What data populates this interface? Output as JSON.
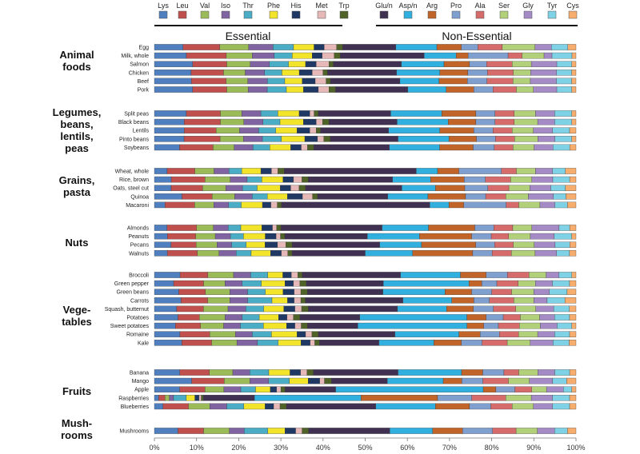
{
  "chart_data": {
    "type": "bar",
    "orientation": "horizontal-stacked-100",
    "sections": [
      {
        "label": "Essential",
        "amino_acids": [
          "Lys",
          "Leu",
          "Val",
          "Iso",
          "Thr",
          "Phe",
          "His",
          "Met",
          "Trp"
        ]
      },
      {
        "label": "Non-Essential",
        "amino_acids": [
          "Glu/n",
          "Asp/n",
          "Arg",
          "Pro",
          "Ala",
          "Ser",
          "Gly",
          "Tyr",
          "Cys"
        ]
      }
    ],
    "legend": [
      {
        "name": "Lys",
        "color": "#4f7fbf"
      },
      {
        "name": "Leu",
        "color": "#c0504d"
      },
      {
        "name": "Val",
        "color": "#9bbb59"
      },
      {
        "name": "Iso",
        "color": "#8064a2"
      },
      {
        "name": "Thr",
        "color": "#4bacc6"
      },
      {
        "name": "Phe",
        "color": "#f2e32b"
      },
      {
        "name": "His",
        "color": "#1f3864"
      },
      {
        "name": "Met",
        "color": "#e6b9b8"
      },
      {
        "name": "Trp",
        "color": "#4f6228"
      },
      {
        "name": "Glu/n",
        "color": "#403152"
      },
      {
        "name": "Asp/n",
        "color": "#31b0e0"
      },
      {
        "name": "Arg",
        "color": "#c0642a"
      },
      {
        "name": "Pro",
        "color": "#7f9fcf"
      },
      {
        "name": "Ala",
        "color": "#d66b6b"
      },
      {
        "name": "Ser",
        "color": "#b2cf7a"
      },
      {
        "name": "Gly",
        "color": "#a48bc6"
      },
      {
        "name": "Tyr",
        "color": "#7fd2e6"
      },
      {
        "name": "Cys",
        "color": "#f6ad6e"
      }
    ],
    "x_ticks": [
      "0%",
      "10%",
      "20%",
      "30%",
      "40%",
      "50%",
      "60%",
      "70%",
      "80%",
      "90%",
      "100%"
    ],
    "xlim": [
      0,
      100
    ],
    "grid": false,
    "legend_placement": "top",
    "groups": [
      {
        "label_lines": [
          "Animal",
          "foods"
        ],
        "items": [
          {
            "name": "Egg",
            "values": [
              7,
              9,
              7,
              6,
              5,
              5,
              2.5,
              3,
              1.5,
              13,
              10,
              6,
              4,
              6,
              8,
              4,
              4,
              2
            ]
          },
          {
            "name": "Milk, whole",
            "values": [
              8,
              10,
              6.5,
              5.5,
              4.5,
              5,
              2.5,
              3,
              1.5,
              21,
              8,
              3,
              10,
              3.5,
              5.5,
              2,
              5,
              1
            ]
          },
          {
            "name": "Salmon",
            "values": [
              9,
              8,
              5.5,
              4.5,
              4.5,
              4,
              2.5,
              3,
              1,
              16,
              10,
              6,
              4,
              6,
              4.5,
              6,
              3.5,
              1
            ]
          },
          {
            "name": "Chicken",
            "values": [
              8.5,
              7.5,
              5,
              4.5,
              4,
              4,
              3,
              2.5,
              1,
              16,
              10,
              6.5,
              4.5,
              6,
              4,
              6,
              3.5,
              1
            ]
          },
          {
            "name": "Beef",
            "values": [
              8.5,
              8,
              5,
              4.5,
              4,
              4,
              3,
              2.5,
              1,
              16,
              9,
              6.5,
              4.5,
              6,
              4,
              6,
              3.5,
              1
            ]
          },
          {
            "name": "Pork",
            "values": [
              9,
              8,
              5,
              4.5,
              4.5,
              4,
              3.5,
              2.5,
              1.5,
              17,
              9,
              6.5,
              4.5,
              5.5,
              4,
              5.5,
              3.5,
              1
            ]
          }
        ]
      },
      {
        "label_lines": [
          "Legumes,",
          "beans,",
          "lentils,",
          "peas"
        ],
        "items": [
          {
            "name": "Split peas",
            "values": [
              7.5,
              8,
              5,
              4.5,
              4,
              5,
              2.5,
              1,
              1,
              17,
              12,
              8,
              4.5,
              4.5,
              5,
              4.5,
              4,
              1
            ]
          },
          {
            "name": "Black beans",
            "values": [
              7,
              8.5,
              5.5,
              4.5,
              4,
              5.5,
              3,
              1.5,
              1.5,
              16,
              12,
              6.5,
              4.5,
              4.5,
              5.5,
              4,
              4,
              1
            ]
          },
          {
            "name": "Lentils",
            "values": [
              7,
              7.5,
              5.5,
              4.5,
              4,
              5,
              3,
              1.5,
              1,
              16,
              12,
              8,
              4.5,
              4.5,
              5,
              4.5,
              4,
              1.5
            ]
          },
          {
            "name": "Pinto beans",
            "values": [
              7,
              8.5,
              5.5,
              4.5,
              4.5,
              5.5,
              3,
              1.5,
              1.5,
              16,
              12,
              6.5,
              4.5,
              4.5,
              5.5,
              4,
              4,
              1
            ]
          },
          {
            "name": "Soybeans",
            "values": [
              6,
              8,
              5,
              4.5,
              4,
              5,
              2.5,
              1.5,
              1.5,
              18,
              12,
              8,
              5,
              4.5,
              5,
              4.5,
              4,
              1.5
            ]
          }
        ]
      },
      {
        "label_lines": [
          "Grains,",
          "pasta"
        ],
        "items": [
          {
            "name": "Wheat, whole",
            "values": [
              3,
              6.5,
              4.5,
              3.5,
              3,
              4.5,
              2.5,
              1.5,
              1.5,
              31,
              5,
              5,
              10,
              3.5,
              4.5,
              4,
              3,
              2.5
            ]
          },
          {
            "name": "Rice, brown",
            "values": [
              4,
              8,
              6,
              4,
              3.5,
              5,
              2.5,
              2,
              1.5,
              20,
              9,
              8,
              5,
              6,
              5,
              5,
              4,
              1.5
            ]
          },
          {
            "name": "Oats, steel cut",
            "values": [
              4,
              7.5,
              5.5,
              4,
              3.5,
              5.5,
              2.5,
              2,
              1.5,
              23,
              8,
              7,
              5.5,
              5,
              5,
              5,
              3.5,
              2.5
            ]
          },
          {
            "name": "Quinoa",
            "values": [
              5.5,
              6,
              4.5,
              3.5,
              3,
              4,
              3,
              2,
              1,
              14,
              8,
              7.5,
              4,
              4,
              4.5,
              5,
              2.5,
              2
            ]
          },
          {
            "name": "Macaroni",
            "values": [
              2.5,
              7,
              4.5,
              3.5,
              3,
              5,
              2,
              1.5,
              1,
              35,
              4.5,
              3.5,
              10,
              3,
              5,
              3.5,
              3,
              2
            ]
          }
        ]
      },
      {
        "label_lines": [
          "Nuts"
        ],
        "items": [
          {
            "name": "Almonds",
            "values": [
              3,
              7,
              4,
              3.5,
              3,
              5,
              2.5,
              1,
              1,
              24,
              11,
              11,
              4.5,
              4.5,
              4.5,
              6.5,
              2.5,
              1.5
            ]
          },
          {
            "name": "Peanuts",
            "values": [
              3,
              6.5,
              4.5,
              3.5,
              3,
              5,
              2.5,
              1,
              1,
              19,
              12,
              12,
              4.5,
              4,
              5,
              5.5,
              4,
              1
            ]
          },
          {
            "name": "Pecans",
            "values": [
              4,
              6,
              5,
              3.5,
              3.5,
              4.5,
              3,
              2,
              1.5,
              21,
              10,
              13,
              4.5,
              4.5,
              5,
              5,
              3.5,
              1.5
            ]
          },
          {
            "name": "Walnuts",
            "values": [
              3,
              7,
              5,
              4,
              3.5,
              4.5,
              2.5,
              1.5,
              1,
              17,
              11,
              14,
              4.5,
              4.5,
              5.5,
              5,
              3,
              1.5
            ]
          }
        ]
      },
      {
        "label_lines": [
          "Vege-",
          "tables"
        ],
        "items": [
          {
            "name": "Broccoli",
            "values": [
              6,
              6.5,
              6,
              4,
              4,
              3.5,
              2,
              1.5,
              1,
              23,
              14,
              6,
              5,
              5,
              4,
              3,
              3,
              1
            ]
          },
          {
            "name": "Green pepper",
            "values": [
              4.5,
              7,
              5,
              4,
              4.5,
              5.5,
              2,
              1.5,
              1.5,
              18,
              20,
              3,
              3.5,
              5,
              4,
              4,
              4,
              1.5
            ]
          },
          {
            "name": "Green beans",
            "values": [
              5.5,
              6,
              5.5,
              4,
              4,
              4,
              2.5,
              1.5,
              1.5,
              17,
              14,
              6,
              4.5,
              4.5,
              5,
              3.5,
              4,
              2
            ]
          },
          {
            "name": "Carrots",
            "values": [
              6,
              6,
              5,
              4,
              5.5,
              3.5,
              1.5,
              1.5,
              1,
              22,
              11,
              5,
              3.5,
              5.5,
              4.5,
              3,
              4,
              2.5
            ]
          },
          {
            "name": "Squash, butternut",
            "values": [
              5,
              6,
              5.5,
              4,
              4,
              4.5,
              2.5,
              1.5,
              1.5,
              20,
              11,
              6,
              4.5,
              5,
              4.5,
              4,
              3.5,
              1.5
            ]
          },
          {
            "name": "Potatoes",
            "values": [
              5.5,
              5,
              6,
              4,
              4,
              4.5,
              2,
              1.5,
              1.5,
              14,
              25,
              4.5,
              4,
              4,
              4.5,
              3.5,
              3.5,
              1.5
            ]
          },
          {
            "name": "Sweet potatoes",
            "values": [
              5,
              6,
              5.5,
              4,
              5.5,
              5.5,
              2,
              1.5,
              1.5,
              12,
              26,
              4,
              3.5,
              5,
              5,
              4,
              3.5,
              1
            ]
          },
          {
            "name": "Romaine",
            "values": [
              6,
              7,
              6,
              4,
              4.5,
              6,
              2,
              1.5,
              1.5,
              18,
              15,
              5,
              4.5,
              4.5,
              4.5,
              4,
              3.5,
              1.5
            ]
          },
          {
            "name": "Kale",
            "values": [
              6,
              6.5,
              5.5,
              4.5,
              4.5,
              5,
              2,
              1,
              1,
              13,
              12,
              6,
              4.5,
              5.5,
              5,
              5,
              3.5,
              1.5
            ]
          }
        ]
      },
      {
        "label_lines": [
          "Fruits"
        ],
        "items": [
          {
            "name": "Banana",
            "values": [
              6,
              7,
              5.5,
              4,
              4.5,
              5,
              2.5,
              1.5,
              1.5,
              20,
              15,
              5,
              5,
              3.5,
              4.5,
              4,
              3.5,
              1.5
            ]
          },
          {
            "name": "Mango",
            "values": [
              8,
              7,
              5.5,
              4,
              4.5,
              4,
              2.5,
              1,
              1.5,
              12,
              12,
              4,
              4.5,
              5.5,
              4.5,
              5,
              3,
              2
            ]
          },
          {
            "name": "Apple",
            "values": [
              6,
              6,
              4.5,
              4,
              3.5,
              3.5,
              1.5,
              1,
              1,
              12,
              35,
              3,
              4.5,
              4,
              3.5,
              4,
              2,
              1
            ]
          },
          {
            "name": "Raspberries",
            "values": [
              1,
              1.5,
              1,
              1,
              3,
              2,
              1,
              0.5,
              0.5,
              12,
              25,
              18,
              8,
              8,
              6,
              5,
              4,
              1.5
            ]
          },
          {
            "name": "Blueberries",
            "values": [
              2,
              6,
              5,
              4,
              4,
              5,
              2,
              1.5,
              1.5,
              21,
              14,
              8,
              5,
              5,
              5,
              4.5,
              4,
              1.5
            ]
          }
        ]
      },
      {
        "label_lines": [
          "Mush-",
          "rooms"
        ],
        "items": [
          {
            "name": "Mushrooms",
            "values": [
              5.5,
              6,
              6,
              3.5,
              5.5,
              4,
              2.5,
              1.5,
              1.5,
              19,
              10,
              7,
              7,
              5.5,
              5,
              4,
              3,
              2
            ]
          }
        ]
      }
    ]
  }
}
